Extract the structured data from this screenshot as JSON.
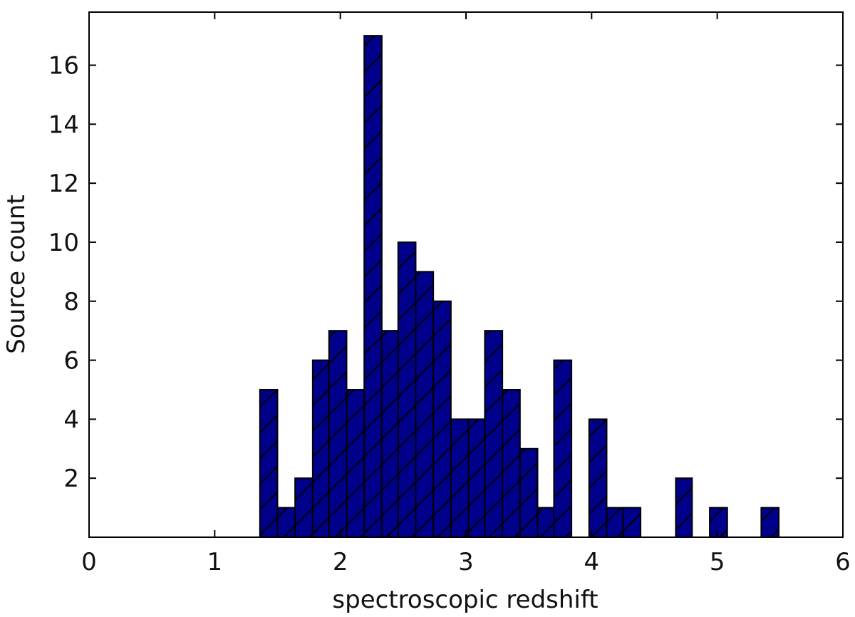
{
  "chart_data": {
    "type": "bar",
    "title": "",
    "xlabel": "spectroscopic redshift",
    "ylabel": "Source count",
    "xlim": [
      0,
      6
    ],
    "ylim": [
      0,
      17.8
    ],
    "x_ticks": [
      0,
      1,
      2,
      3,
      4,
      5,
      6
    ],
    "x_tick_labels": [
      "0",
      "1",
      "2",
      "3",
      "4",
      "5",
      "6"
    ],
    "y_ticks": [
      2,
      4,
      6,
      8,
      10,
      12,
      14,
      16
    ],
    "y_tick_labels": [
      "2",
      "4",
      "6",
      "8",
      "10",
      "12",
      "14",
      "16"
    ],
    "grid": false,
    "legend": "none",
    "bar_color": "#00008b",
    "edge_color": "#000000",
    "hatch": "/",
    "bins": [
      {
        "x0": 1.36,
        "x1": 1.5,
        "count": 5
      },
      {
        "x0": 1.5,
        "x1": 1.64,
        "count": 1
      },
      {
        "x0": 1.64,
        "x1": 1.78,
        "count": 2
      },
      {
        "x0": 1.78,
        "x1": 1.91,
        "count": 6
      },
      {
        "x0": 1.91,
        "x1": 2.05,
        "count": 7
      },
      {
        "x0": 2.05,
        "x1": 2.19,
        "count": 5
      },
      {
        "x0": 2.19,
        "x1": 2.33,
        "count": 17
      },
      {
        "x0": 2.33,
        "x1": 2.46,
        "count": 7
      },
      {
        "x0": 2.46,
        "x1": 2.6,
        "count": 10
      },
      {
        "x0": 2.6,
        "x1": 2.74,
        "count": 9
      },
      {
        "x0": 2.74,
        "x1": 2.88,
        "count": 8
      },
      {
        "x0": 2.88,
        "x1": 3.02,
        "count": 4
      },
      {
        "x0": 3.02,
        "x1": 3.15,
        "count": 4
      },
      {
        "x0": 3.15,
        "x1": 3.29,
        "count": 7
      },
      {
        "x0": 3.29,
        "x1": 3.43,
        "count": 5
      },
      {
        "x0": 3.43,
        "x1": 3.57,
        "count": 3
      },
      {
        "x0": 3.57,
        "x1": 3.7,
        "count": 1
      },
      {
        "x0": 3.7,
        "x1": 3.84,
        "count": 6
      },
      {
        "x0": 3.84,
        "x1": 3.98,
        "count": 0
      },
      {
        "x0": 3.98,
        "x1": 4.12,
        "count": 4
      },
      {
        "x0": 4.12,
        "x1": 4.25,
        "count": 1
      },
      {
        "x0": 4.25,
        "x1": 4.39,
        "count": 1
      },
      {
        "x0": 4.39,
        "x1": 4.53,
        "count": 0
      },
      {
        "x0": 4.53,
        "x1": 4.67,
        "count": 0
      },
      {
        "x0": 4.67,
        "x1": 4.8,
        "count": 2
      },
      {
        "x0": 4.8,
        "x1": 4.94,
        "count": 0
      },
      {
        "x0": 4.94,
        "x1": 5.08,
        "count": 1
      },
      {
        "x0": 5.08,
        "x1": 5.22,
        "count": 0
      },
      {
        "x0": 5.22,
        "x1": 5.35,
        "count": 0
      },
      {
        "x0": 5.35,
        "x1": 5.49,
        "count": 1
      }
    ]
  }
}
